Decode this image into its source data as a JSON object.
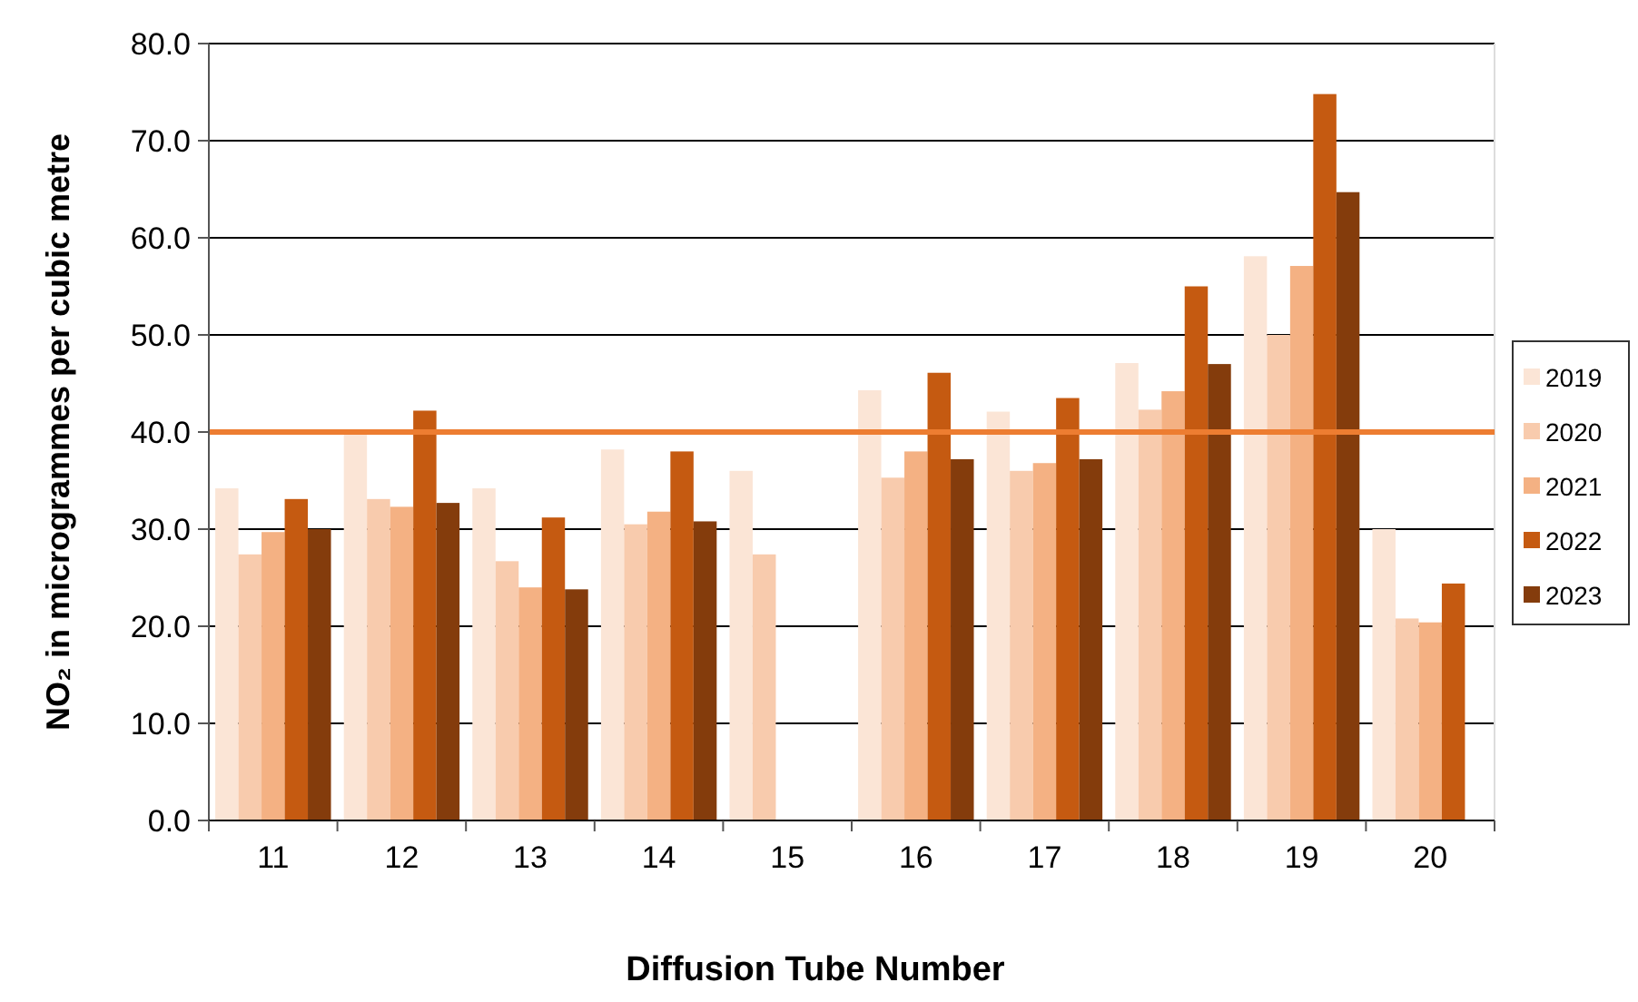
{
  "chart_data": {
    "type": "bar",
    "xlabel": "Diffusion Tube Number",
    "ylabel": "NO₂ in microgrammes per cubic metre",
    "categories": [
      "11",
      "12",
      "13",
      "14",
      "15",
      "16",
      "17",
      "18",
      "19",
      "20"
    ],
    "series": [
      {
        "name": "2019",
        "color": "#fbe5d6",
        "values": [
          34.2,
          40.0,
          34.2,
          38.2,
          36.0,
          44.3,
          42.1,
          47.1,
          58.1,
          30.0
        ]
      },
      {
        "name": "2020",
        "color": "#f8cbad",
        "values": [
          27.4,
          33.1,
          26.7,
          30.5,
          27.4,
          35.3,
          36.0,
          42.3,
          50.0,
          20.8
        ]
      },
      {
        "name": "2021",
        "color": "#f4b183",
        "values": [
          29.7,
          32.3,
          24.0,
          31.8,
          null,
          38.0,
          36.8,
          44.2,
          57.1,
          20.4
        ]
      },
      {
        "name": "2022",
        "color": "#c55a11",
        "values": [
          33.1,
          42.2,
          31.2,
          38.0,
          null,
          46.1,
          43.5,
          55.0,
          74.8,
          24.4
        ]
      },
      {
        "name": "2023",
        "color": "#843c0c",
        "values": [
          30.0,
          32.7,
          23.8,
          30.8,
          null,
          37.2,
          37.2,
          47.0,
          64.7,
          null
        ]
      }
    ],
    "ylim": [
      0,
      80
    ],
    "yticks": [
      {
        "value": 0,
        "label": "0.0"
      },
      {
        "value": 10,
        "label": "10.0"
      },
      {
        "value": 20,
        "label": "20.0"
      },
      {
        "value": 30,
        "label": "30.0"
      },
      {
        "value": 40,
        "label": "40.0"
      },
      {
        "value": 50,
        "label": "50.0"
      },
      {
        "value": 60,
        "label": "60.0"
      },
      {
        "value": 70,
        "label": "70.0"
      },
      {
        "value": 80,
        "label": "80.0"
      }
    ],
    "grid": "y",
    "legend": "right",
    "ref_lines": [
      {
        "axis": "y",
        "value": 40,
        "color": "#ed7d31"
      }
    ]
  }
}
